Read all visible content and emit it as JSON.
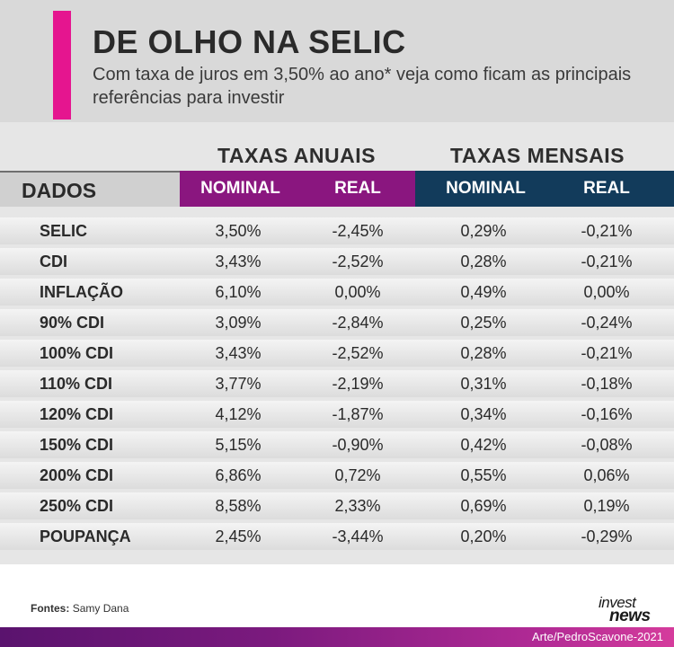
{
  "header": {
    "title": "DE OLHO NA SELIC",
    "subtitle": "Com taxa de juros em 3,50% ao ano* veja como ficam as principais referências para investir",
    "accent_color": "#e5158f"
  },
  "table": {
    "group_annual": "TAXAS ANUAIS",
    "group_monthly": "TAXAS MENSAIS",
    "col_dados": "DADOS",
    "col_annual_nominal": "NOMINAL",
    "col_annual_real": "REAL",
    "col_monthly_nominal": "NOMINAL",
    "col_monthly_real": "REAL",
    "annual_color": "#8a167f",
    "monthly_color": "#123b5b",
    "rows": [
      {
        "name": "SELIC",
        "an": "3,50%",
        "ar": "-2,45%",
        "mn": "0,29%",
        "mr": "-0,21%"
      },
      {
        "name": "CDI",
        "an": "3,43%",
        "ar": "-2,52%",
        "mn": "0,28%",
        "mr": "-0,21%"
      },
      {
        "name": "INFLAÇÃO",
        "an": "6,10%",
        "ar": "0,00%",
        "mn": "0,49%",
        "mr": "0,00%"
      },
      {
        "name": "90% CDI",
        "an": "3,09%",
        "ar": "-2,84%",
        "mn": "0,25%",
        "mr": "-0,24%"
      },
      {
        "name": "100% CDI",
        "an": "3,43%",
        "ar": "-2,52%",
        "mn": "0,28%",
        "mr": "-0,21%"
      },
      {
        "name": "110% CDI",
        "an": "3,77%",
        "ar": "-2,19%",
        "mn": "0,31%",
        "mr": "-0,18%"
      },
      {
        "name": "120% CDI",
        "an": "4,12%",
        "ar": "-1,87%",
        "mn": "0,34%",
        "mr": "-0,16%"
      },
      {
        "name": "150% CDI",
        "an": "5,15%",
        "ar": "-0,90%",
        "mn": "0,42%",
        "mr": "-0,08%"
      },
      {
        "name": "200% CDI",
        "an": "6,86%",
        "ar": "0,72%",
        "mn": "0,55%",
        "mr": "0,06%"
      },
      {
        "name": "250% CDI",
        "an": "8,58%",
        "ar": "2,33%",
        "mn": "0,69%",
        "mr": "0,19%"
      },
      {
        "name": "POUPANÇA",
        "an": "2,45%",
        "ar": "-3,44%",
        "mn": "0,20%",
        "mr": "-0,29%"
      }
    ]
  },
  "footer": {
    "sources_label": "Fontes:",
    "sources_value": "Samy Dana",
    "logo_line1": "invest",
    "logo_line2": "news",
    "credit": "Arte/PedroScavone-2021"
  }
}
